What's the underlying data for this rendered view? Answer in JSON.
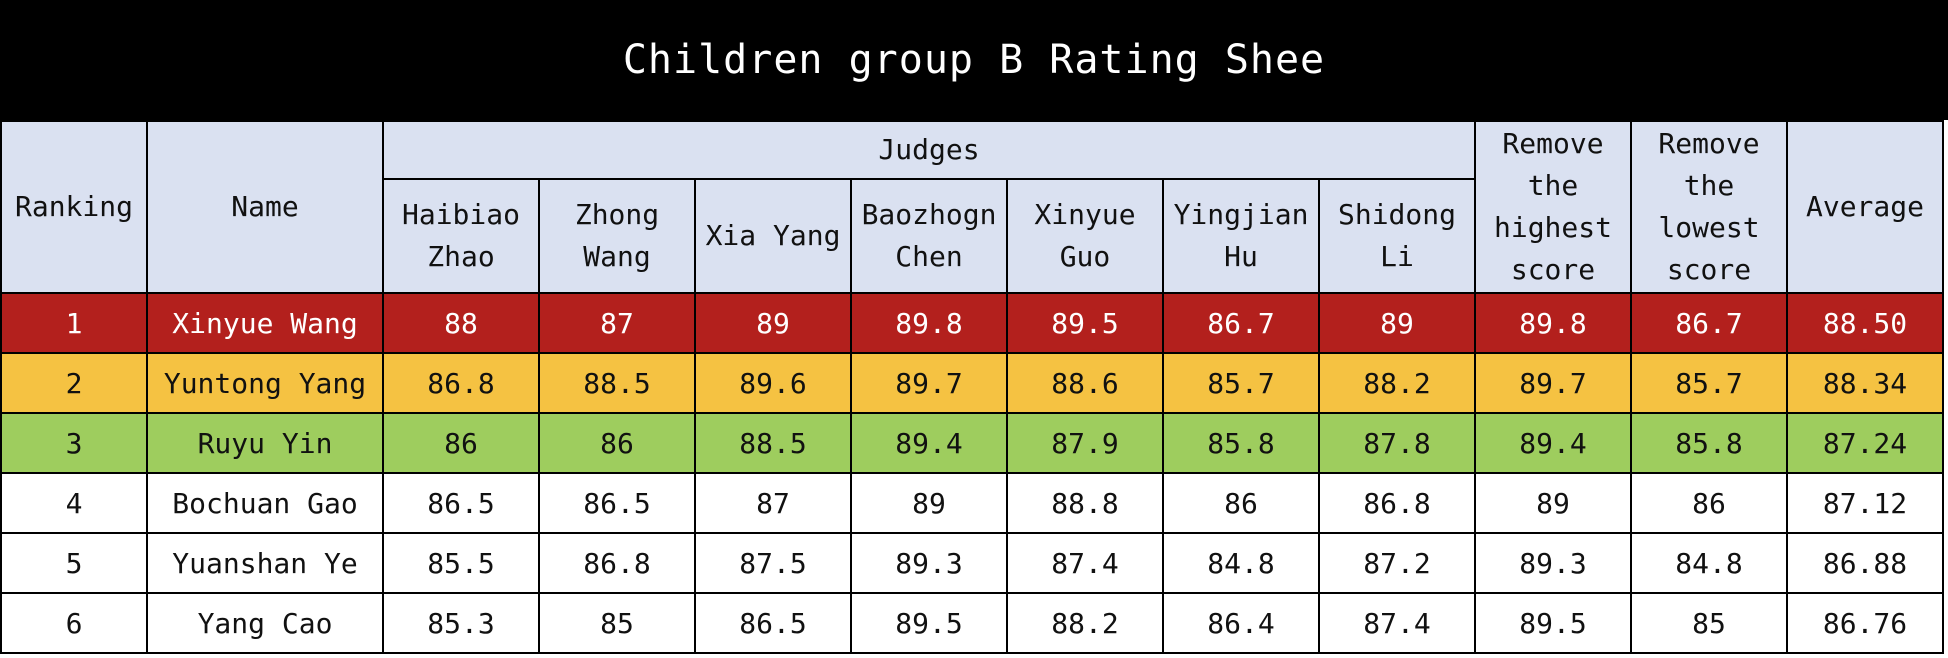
{
  "title": "Children group B Rating Shee",
  "headers": {
    "ranking": "Ranking",
    "name": "Name",
    "judges_group": "Judges",
    "judges": [
      "Haibiao Zhao",
      "Zhong Wang",
      "Xia Yang",
      "Baozhogn Chen",
      "Xinyue Guo",
      "Yingjian Hu",
      "Shidong Li"
    ],
    "remove_highest": "Remove the highest score",
    "remove_lowest": "Remove the lowest score",
    "average": "Average"
  },
  "row_colors": {
    "rank_1": "#b3201d",
    "rank_2": "#f5c242",
    "rank_3": "#9ecd5e",
    "header": "#dae1f1",
    "title_bar": "#000000"
  },
  "rows": [
    {
      "ranking": "1",
      "name": "Xinyue Wang",
      "scores": [
        "88",
        "87",
        "89",
        "89.8",
        "89.5",
        "86.7",
        "89"
      ],
      "remove_highest": "89.8",
      "remove_lowest": "86.7",
      "average": "88.50"
    },
    {
      "ranking": "2",
      "name": "Yuntong Yang",
      "scores": [
        "86.8",
        "88.5",
        "89.6",
        "89.7",
        "88.6",
        "85.7",
        "88.2"
      ],
      "remove_highest": "89.7",
      "remove_lowest": "85.7",
      "average": "88.34"
    },
    {
      "ranking": "3",
      "name": "Ruyu Yin",
      "scores": [
        "86",
        "86",
        "88.5",
        "89.4",
        "87.9",
        "85.8",
        "87.8"
      ],
      "remove_highest": "89.4",
      "remove_lowest": "85.8",
      "average": "87.24"
    },
    {
      "ranking": "4",
      "name": "Bochuan Gao",
      "scores": [
        "86.5",
        "86.5",
        "87",
        "89",
        "88.8",
        "86",
        "86.8"
      ],
      "remove_highest": "89",
      "remove_lowest": "86",
      "average": "87.12"
    },
    {
      "ranking": "5",
      "name": "Yuanshan Ye",
      "scores": [
        "85.5",
        "86.8",
        "87.5",
        "89.3",
        "87.4",
        "84.8",
        "87.2"
      ],
      "remove_highest": "89.3",
      "remove_lowest": "84.8",
      "average": "86.88"
    },
    {
      "ranking": "6",
      "name": "Yang Cao",
      "scores": [
        "85.3",
        "85",
        "86.5",
        "89.5",
        "88.2",
        "86.4",
        "87.4"
      ],
      "remove_highest": "89.5",
      "remove_lowest": "85",
      "average": "86.76"
    }
  ]
}
